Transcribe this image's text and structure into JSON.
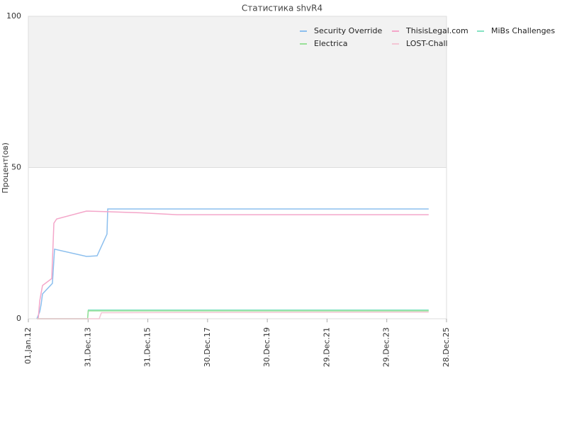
{
  "chart_data": {
    "type": "line",
    "title": "Статистика shvR4",
    "y_label": "Процент(ов)",
    "xlim": [
      "2012-01-01",
      "2025-12-28"
    ],
    "xticks": [
      {
        "value": "2012-01-01",
        "label": "01.Jan.12"
      },
      {
        "value": "2013-12-31",
        "label": "31.Dec.13"
      },
      {
        "value": "2015-12-31",
        "label": "31.Dec.15"
      },
      {
        "value": "2017-12-30",
        "label": "30.Dec.17"
      },
      {
        "value": "2019-12-30",
        "label": "30.Dec.19"
      },
      {
        "value": "2021-12-29",
        "label": "29.Dec.21"
      },
      {
        "value": "2023-12-29",
        "label": "29.Dec.23"
      },
      {
        "value": "2025-12-28",
        "label": "28.Dec.25"
      }
    ],
    "ylim": [
      0,
      100
    ],
    "yticks": [
      0,
      50,
      100
    ],
    "grid": true,
    "legend": "top-right",
    "series": [
      {
        "name": "Security Override",
        "color": "#8cbfee",
        "x": [
          "2012-04-14",
          "2012-05-19",
          "2012-06-05",
          "2012-06-22",
          "2012-10-21",
          "2012-11-16",
          "2013-12-11",
          "2014-04-20",
          "2014-08-19",
          "2014-08-28",
          "2025-05-24"
        ],
        "values": [
          0,
          2.3,
          4.7,
          8.2,
          11.7,
          23,
          20.6,
          20.8,
          28,
          36.3,
          36.3
        ]
      },
      {
        "name": "ThisisLegal.com",
        "color": "#f4a6c9",
        "x": [
          "2012-05-01",
          "2012-05-19",
          "2012-06-22",
          "2012-10-13",
          "2012-11-08",
          "2012-12-12",
          "2013-12-11",
          "2014-08-28",
          "2015-10-17",
          "2016-12-23",
          "2025-05-24"
        ],
        "values": [
          0,
          5.9,
          11,
          13.3,
          31.6,
          33,
          35.6,
          35.4,
          35,
          34.4,
          34.4
        ]
      },
      {
        "name": "MiBs Challenges",
        "color": "#86e3c3",
        "x": [
          "2012-04-14",
          "2013-12-25",
          "2014-01-04",
          "2025-05-24"
        ],
        "values": [
          0,
          0,
          2.9,
          2.9
        ]
      },
      {
        "name": "Electrica",
        "color": "#98e098",
        "x": [
          "2012-04-14",
          "2013-12-25",
          "2014-01-01",
          "2025-05-24"
        ],
        "values": [
          0,
          0,
          2.6,
          2.6
        ]
      },
      {
        "name": "LOST-Chall",
        "color": "#f3c6d4",
        "x": [
          "2012-04-14",
          "2014-05-16",
          "2014-06-12",
          "2025-05-24"
        ],
        "values": [
          0,
          0,
          2,
          2.2
        ]
      }
    ]
  }
}
